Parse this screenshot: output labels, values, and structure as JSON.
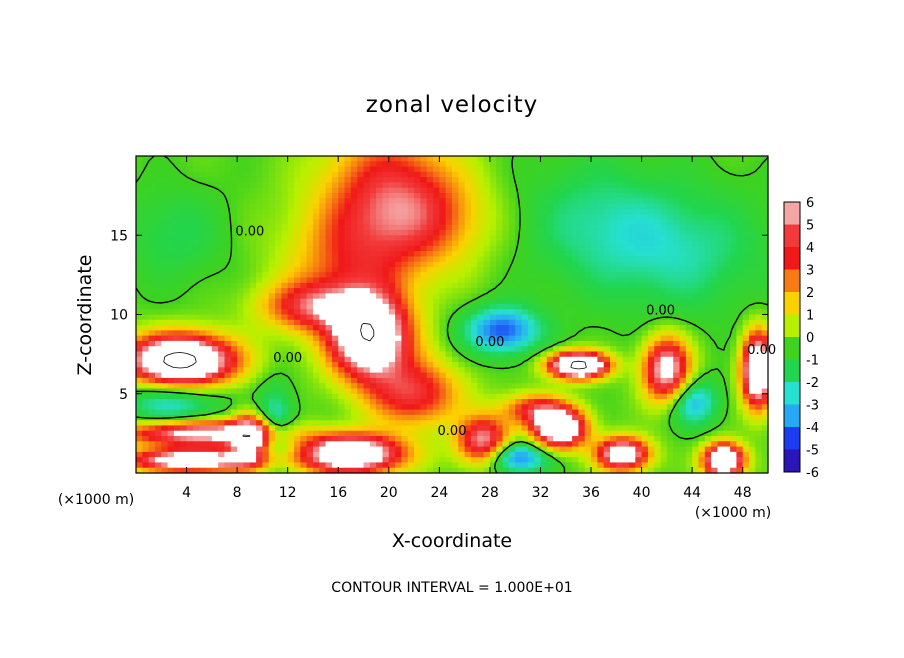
{
  "chart_data": {
    "type": "heatmap",
    "title": "zonal velocity",
    "xlabel": "X-coordinate",
    "ylabel": "Z-coordinate",
    "x_unit_label": "(×1000 m)",
    "x_unit_label_right": "(×1000 m)",
    "xlim": [
      0,
      50
    ],
    "ylim": [
      0,
      20
    ],
    "x_ticks": [
      4,
      8,
      12,
      16,
      20,
      24,
      28,
      32,
      36,
      40,
      44,
      48
    ],
    "y_ticks": [
      5,
      10,
      15
    ],
    "colorbar": {
      "levels": [
        6,
        5,
        4,
        3,
        2,
        1,
        0,
        -1,
        -2,
        -3,
        -4,
        -5,
        -6
      ],
      "colors": [
        "#f4a6a6",
        "#f23a3a",
        "#f01818",
        "#f77a14",
        "#fcd100",
        "#b8f000",
        "#3fd21e",
        "#22d54e",
        "#26e0d0",
        "#26a8f5",
        "#1b3cf0",
        "#2a16b8",
        "#6a0aa8"
      ]
    },
    "contour_labels": [
      "0.00",
      "0.00",
      "0.00",
      "0.00",
      "0.00",
      "0.00"
    ],
    "contour_interval_text": "CONTOUR INTERVAL = 1.000E+01",
    "blobs": [
      {
        "x": 17,
        "y": 13,
        "v": 3.0,
        "sx": 5,
        "sy": 4
      },
      {
        "x": 20,
        "y": 18,
        "v": 3.5,
        "sx": 5,
        "sy": 4
      },
      {
        "x": 23,
        "y": 16,
        "v": 2.5,
        "sx": 5,
        "sy": 3
      },
      {
        "x": 18.5,
        "y": 8.5,
        "v": 9,
        "sx": 3.0,
        "sy": 2.5
      },
      {
        "x": 14,
        "y": 10.5,
        "v": 4,
        "sx": 4,
        "sy": 1.5
      },
      {
        "x": 22,
        "y": 5,
        "v": 4.5,
        "sx": 3.5,
        "sy": 2.0
      },
      {
        "x": 3.5,
        "y": 7,
        "v": 12,
        "sx": 4,
        "sy": 1.6
      },
      {
        "x": 5,
        "y": 2.5,
        "v": 7,
        "sx": 6,
        "sy": 0.8
      },
      {
        "x": 4.5,
        "y": 0.8,
        "v": 8,
        "sx": 5,
        "sy": 0.7
      },
      {
        "x": 9,
        "y": 2.2,
        "v": 6,
        "sx": 1.5,
        "sy": 1.5
      },
      {
        "x": 17,
        "y": 1.2,
        "v": 9,
        "sx": 4,
        "sy": 1.2
      },
      {
        "x": 27.5,
        "y": 2.0,
        "v": 6,
        "sx": 2,
        "sy": 1.5
      },
      {
        "x": 33.5,
        "y": 2.8,
        "v": 9,
        "sx": 2,
        "sy": 1.2
      },
      {
        "x": 31.5,
        "y": 4.0,
        "v": 4,
        "sx": 2.5,
        "sy": 1.0
      },
      {
        "x": 38.5,
        "y": 1.2,
        "v": 8,
        "sx": 2,
        "sy": 1.0
      },
      {
        "x": 35,
        "y": 6.8,
        "v": 11,
        "sx": 2.2,
        "sy": 0.8
      },
      {
        "x": 42,
        "y": 6.5,
        "v": 7,
        "sx": 1.8,
        "sy": 2.0
      },
      {
        "x": 49.2,
        "y": 6.5,
        "v": 10,
        "sx": 1.2,
        "sy": 2.2
      },
      {
        "x": 46.5,
        "y": 0.8,
        "v": 10,
        "sx": 1.5,
        "sy": 1.0
      },
      {
        "x": 29,
        "y": 9,
        "v": -4,
        "sx": 3,
        "sy": 1.5
      },
      {
        "x": 43,
        "y": 14,
        "v": -1.8,
        "sx": 7,
        "sy": 4
      },
      {
        "x": 36,
        "y": 16,
        "v": -1.4,
        "sx": 6,
        "sy": 4
      },
      {
        "x": 3,
        "y": 15,
        "v": -1.2,
        "sx": 4,
        "sy": 3
      },
      {
        "x": 3,
        "y": 5,
        "v": -3,
        "sx": 4,
        "sy": 2
      },
      {
        "x": 44,
        "y": 4.5,
        "v": -3,
        "sx": 2,
        "sy": 1.5
      },
      {
        "x": 30,
        "y": 1,
        "v": -4,
        "sx": 2.5,
        "sy": 1.0
      },
      {
        "x": 11,
        "y": 3,
        "v": -2.5,
        "sx": 1.5,
        "sy": 2.5
      }
    ]
  }
}
